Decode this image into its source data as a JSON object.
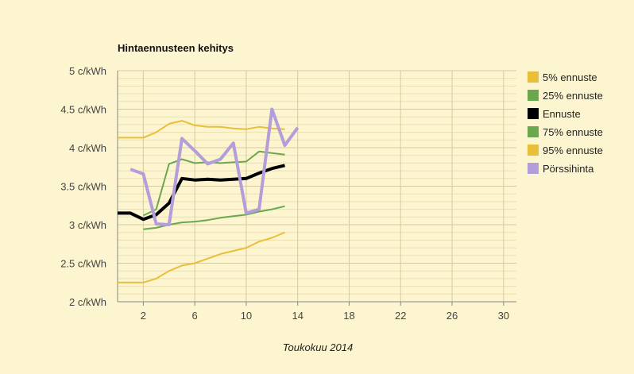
{
  "chart_data": {
    "type": "line",
    "title": "Hintaennusteen kehitys",
    "xlabel": "Toukokuu 2014",
    "ylabel": "",
    "xlim": [
      0,
      31
    ],
    "ylim": [
      2,
      5
    ],
    "x_ticks": [
      2,
      6,
      10,
      14,
      18,
      22,
      26,
      30
    ],
    "x_tick_labels": [
      "2",
      "6",
      "10",
      "14",
      "18",
      "22",
      "26",
      "30"
    ],
    "y_ticks": [
      2,
      2.5,
      3,
      3.5,
      4,
      4.5,
      5
    ],
    "y_tick_labels": [
      "2 c/kWh",
      "2.5 c/kWh",
      "3 c/kWh",
      "3.5 c/kWh",
      "4 c/kWh",
      "4.5 c/kWh",
      "5 c/kWh"
    ],
    "grid": true,
    "legend_position": "right",
    "background_color": "#fdf5d0",
    "series": [
      {
        "name": "5% ennuste",
        "color": "#e9bf3a",
        "width": 2,
        "x": [
          0,
          1,
          2,
          3,
          4,
          5,
          6,
          7,
          8,
          9,
          10,
          11,
          12,
          13
        ],
        "values": [
          2.25,
          2.25,
          2.25,
          2.3,
          2.4,
          2.47,
          2.5,
          2.56,
          2.62,
          2.66,
          2.7,
          2.78,
          2.83,
          2.9
        ]
      },
      {
        "name": "25% ennuste",
        "color": "#6aa84f",
        "width": 2,
        "x": [
          2,
          3,
          4,
          5,
          6,
          7,
          8,
          9,
          10,
          11,
          12,
          13
        ],
        "values": [
          2.94,
          2.96,
          3.0,
          3.03,
          3.04,
          3.06,
          3.09,
          3.11,
          3.13,
          3.17,
          3.2,
          3.24
        ]
      },
      {
        "name": "Ennuste",
        "color": "#000000",
        "width": 4,
        "x": [
          0,
          1,
          2,
          3,
          4,
          5,
          6,
          7,
          8,
          9,
          10,
          11,
          12,
          13
        ],
        "values": [
          3.15,
          3.15,
          3.07,
          3.13,
          3.28,
          3.6,
          3.58,
          3.59,
          3.58,
          3.59,
          3.6,
          3.67,
          3.73,
          3.77
        ]
      },
      {
        "name": "75% ennuste",
        "color": "#6aa84f",
        "width": 2,
        "x": [
          2,
          3,
          4,
          5,
          6,
          7,
          8,
          9,
          10,
          11,
          12,
          13
        ],
        "values": [
          3.12,
          3.2,
          3.79,
          3.85,
          3.8,
          3.81,
          3.8,
          3.81,
          3.82,
          3.95,
          3.93,
          3.91
        ]
      },
      {
        "name": "95% ennuste",
        "color": "#e9bf3a",
        "width": 2,
        "x": [
          0,
          1,
          2,
          3,
          4,
          5,
          6,
          7,
          8,
          9,
          10,
          11,
          12,
          13
        ],
        "values": [
          4.13,
          4.13,
          4.13,
          4.2,
          4.31,
          4.35,
          4.29,
          4.27,
          4.27,
          4.25,
          4.24,
          4.27,
          4.25,
          4.24
        ]
      },
      {
        "name": "Pörssihinta",
        "color": "#b39ddb",
        "width": 4,
        "x": [
          1,
          2,
          3,
          4,
          5,
          6,
          7,
          8,
          9,
          10,
          11,
          12,
          13,
          14
        ],
        "values": [
          3.72,
          3.66,
          3.01,
          3.0,
          4.12,
          3.96,
          3.79,
          3.85,
          4.06,
          3.15,
          3.2,
          4.5,
          4.03,
          4.26
        ]
      }
    ]
  }
}
